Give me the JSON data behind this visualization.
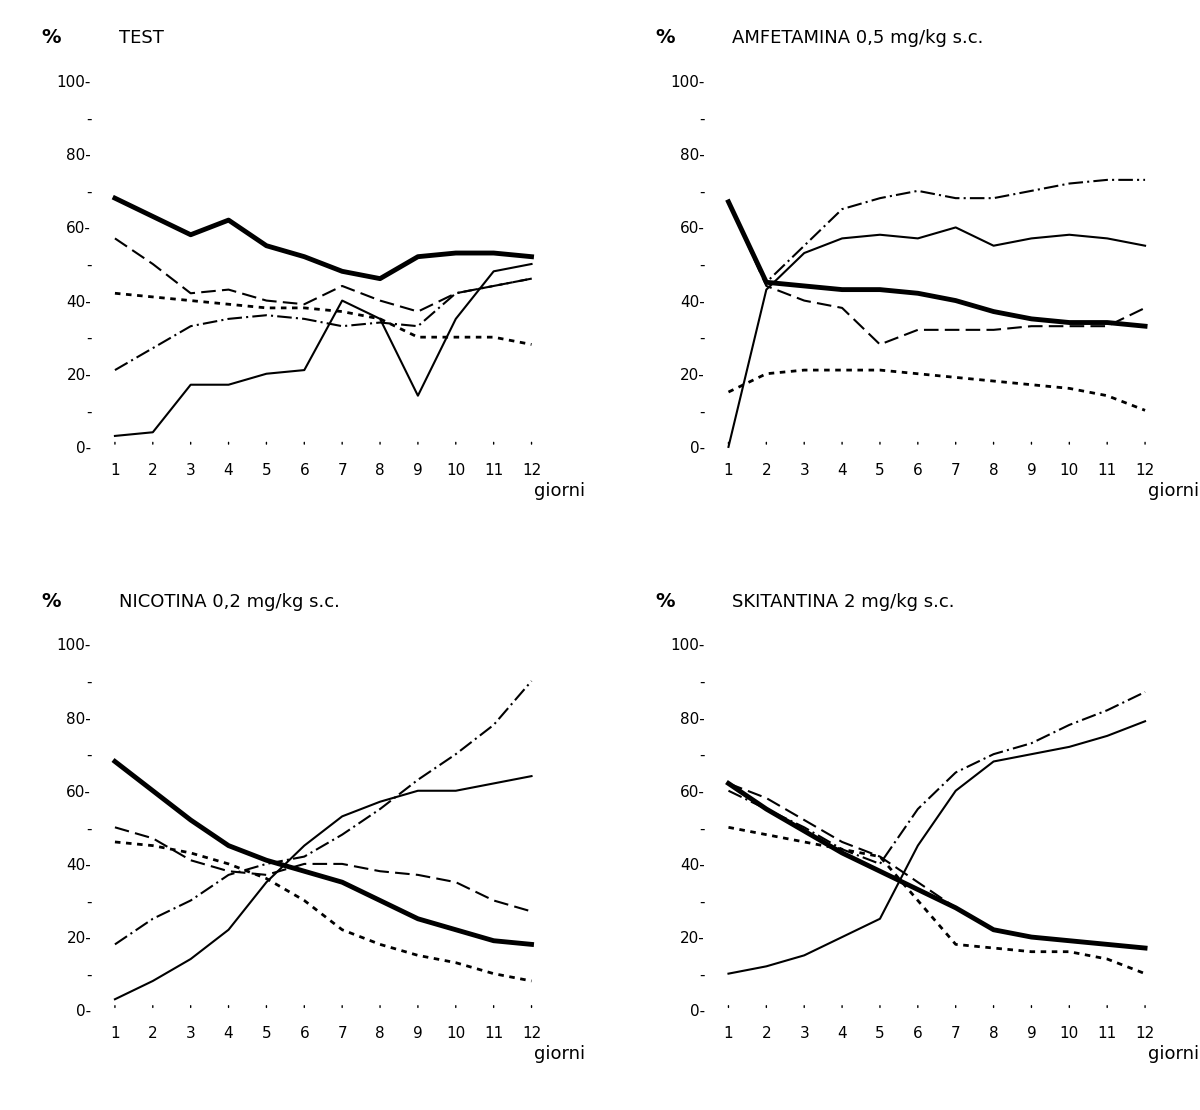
{
  "days": [
    1,
    2,
    3,
    4,
    5,
    6,
    7,
    8,
    9,
    10,
    11,
    12
  ],
  "subplots": [
    {
      "title": "TEST",
      "lines": [
        {
          "style": "solid",
          "lw": 3.5,
          "values": [
            68,
            63,
            58,
            62,
            55,
            52,
            48,
            46,
            52,
            53,
            53,
            52
          ]
        },
        {
          "style": "dashed",
          "lw": 1.5,
          "values": [
            57,
            50,
            42,
            43,
            40,
            39,
            44,
            40,
            37,
            42,
            44,
            46
          ]
        },
        {
          "style": "dotted",
          "lw": 2.0,
          "values": [
            42,
            41,
            40,
            39,
            38,
            38,
            37,
            35,
            30,
            30,
            30,
            28
          ]
        },
        {
          "style": "dashdot",
          "lw": 1.5,
          "values": [
            21,
            27,
            33,
            35,
            36,
            35,
            33,
            34,
            33,
            42,
            44,
            46
          ]
        },
        {
          "style": "solid",
          "lw": 1.5,
          "values": [
            3,
            4,
            17,
            17,
            20,
            21,
            40,
            35,
            14,
            35,
            48,
            50
          ]
        }
      ]
    },
    {
      "title": "AMFETAMINA 0,5 mg/kg s.c.",
      "lines": [
        {
          "style": "solid",
          "lw": 3.5,
          "values": [
            67,
            45,
            44,
            43,
            43,
            42,
            40,
            37,
            35,
            34,
            34,
            33
          ]
        },
        {
          "style": "dashed",
          "lw": 1.5,
          "values": [
            67,
            44,
            40,
            38,
            28,
            32,
            32,
            32,
            33,
            33,
            33,
            38
          ]
        },
        {
          "style": "dotted",
          "lw": 2.0,
          "values": [
            15,
            20,
            21,
            21,
            21,
            20,
            19,
            18,
            17,
            16,
            14,
            10
          ]
        },
        {
          "style": "dashdot",
          "lw": 1.5,
          "values": [
            67,
            45,
            55,
            65,
            68,
            70,
            68,
            68,
            70,
            72,
            73,
            73
          ]
        },
        {
          "style": "solid",
          "lw": 1.5,
          "values": [
            0,
            43,
            53,
            57,
            58,
            57,
            60,
            55,
            57,
            58,
            57,
            55
          ]
        }
      ]
    },
    {
      "title": "NICOTINA 0,2 mg/kg s.c.",
      "lines": [
        {
          "style": "solid",
          "lw": 3.5,
          "values": [
            68,
            60,
            52,
            45,
            41,
            38,
            35,
            30,
            25,
            22,
            19,
            18
          ]
        },
        {
          "style": "dashed",
          "lw": 1.5,
          "values": [
            50,
            47,
            41,
            38,
            37,
            40,
            40,
            38,
            37,
            35,
            30,
            27
          ]
        },
        {
          "style": "dotted",
          "lw": 2.0,
          "values": [
            46,
            45,
            43,
            40,
            36,
            30,
            22,
            18,
            15,
            13,
            10,
            8
          ]
        },
        {
          "style": "dashdot",
          "lw": 1.5,
          "values": [
            18,
            25,
            30,
            37,
            40,
            42,
            48,
            55,
            63,
            70,
            78,
            90
          ]
        },
        {
          "style": "solid",
          "lw": 1.5,
          "values": [
            3,
            8,
            14,
            22,
            35,
            45,
            53,
            57,
            60,
            60,
            62,
            64
          ]
        }
      ]
    },
    {
      "title": "SKITANTINA 2 mg/kg s.c.",
      "lines": [
        {
          "style": "solid",
          "lw": 3.5,
          "values": [
            62,
            55,
            49,
            43,
            38,
            33,
            28,
            22,
            20,
            19,
            18,
            17
          ]
        },
        {
          "style": "dashed",
          "lw": 1.5,
          "values": [
            62,
            58,
            52,
            46,
            42,
            35,
            28,
            22,
            20,
            19,
            18,
            17
          ]
        },
        {
          "style": "dotted",
          "lw": 2.0,
          "values": [
            50,
            48,
            46,
            44,
            42,
            30,
            18,
            17,
            16,
            16,
            14,
            10
          ]
        },
        {
          "style": "dashdot",
          "lw": 1.5,
          "values": [
            60,
            55,
            50,
            44,
            40,
            55,
            65,
            70,
            73,
            78,
            82,
            87
          ]
        },
        {
          "style": "solid",
          "lw": 1.5,
          "values": [
            10,
            12,
            15,
            20,
            25,
            45,
            60,
            68,
            70,
            72,
            75,
            79
          ]
        }
      ]
    }
  ],
  "yticks_major": [
    0,
    20,
    40,
    60,
    80,
    100
  ],
  "yticks_minor": [
    10,
    30,
    50,
    70,
    90
  ],
  "ylim": [
    -3,
    107
  ],
  "xlim": [
    0.5,
    12.5
  ],
  "background": "#ffffff",
  "line_color": "#000000",
  "fontsize_title": 13,
  "fontsize_label": 13,
  "fontsize_tick": 11,
  "fontsize_pct": 14
}
